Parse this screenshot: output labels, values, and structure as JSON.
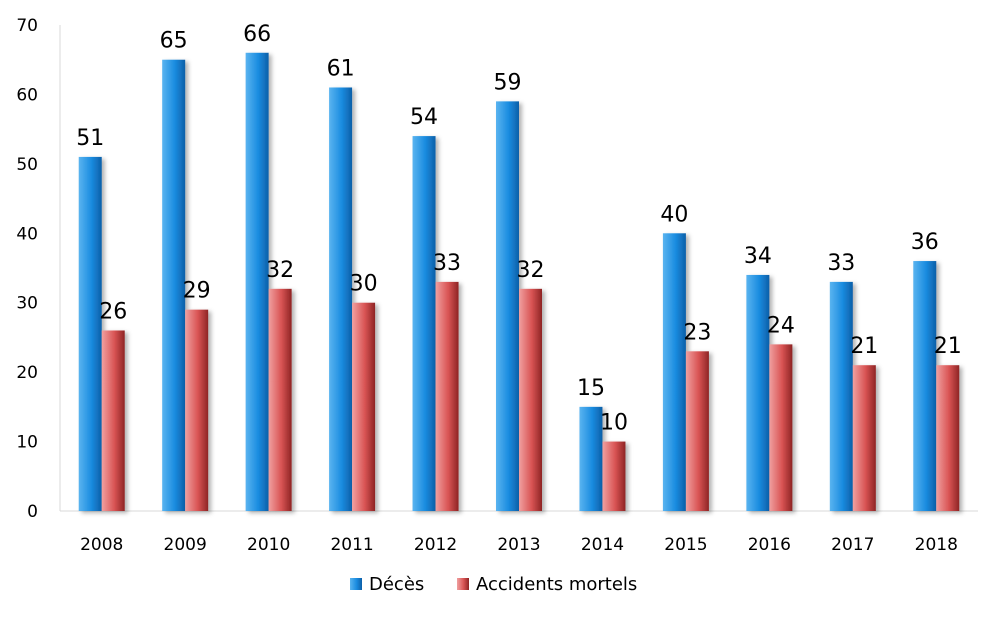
{
  "chart_data": {
    "type": "bar",
    "categories": [
      "2008",
      "2009",
      "2010",
      "2011",
      "2012",
      "2013",
      "2014",
      "2015",
      "2016",
      "2017",
      "2018"
    ],
    "series": [
      {
        "name": "Décès",
        "values": [
          51,
          65,
          66,
          61,
          54,
          59,
          15,
          40,
          34,
          33,
          36
        ],
        "color": "#1f8fdc"
      },
      {
        "name": "Accidents mortels",
        "values": [
          26,
          29,
          32,
          30,
          33,
          32,
          10,
          23,
          24,
          21,
          21
        ],
        "color": "#d9534f"
      }
    ],
    "yticks": [
      "0",
      "10",
      "20",
      "30",
      "40",
      "50",
      "60",
      "70"
    ],
    "ylim": [
      0,
      70
    ],
    "grid": false,
    "data_labels": true,
    "legend_position": "bottom"
  }
}
